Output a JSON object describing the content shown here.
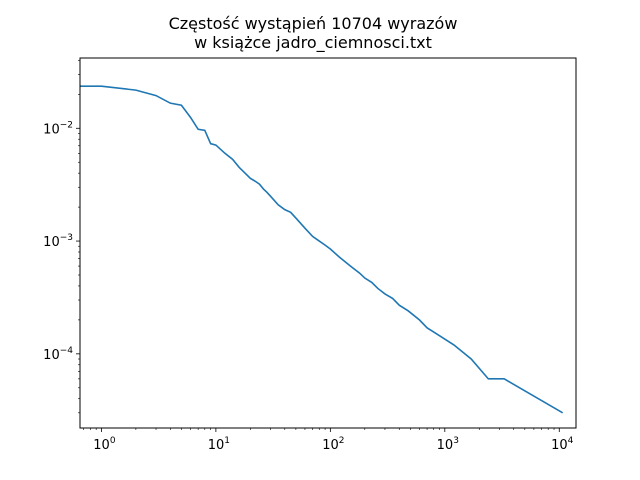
{
  "chart_data": {
    "type": "line",
    "title_lines": [
      "Częstość wystąpień 10704 wyrazów",
      "w książce jadro_ciemnosci.txt"
    ],
    "xscale": "log",
    "yscale": "log",
    "xlim": [
      0.65,
      14000
    ],
    "ylim": [
      2.2e-05,
      0.042
    ],
    "grid": false,
    "line_color": "#1f77b4",
    "x_ticks": [
      {
        "value": 1,
        "base": "10",
        "exp": "0"
      },
      {
        "value": 10,
        "base": "10",
        "exp": "1"
      },
      {
        "value": 100,
        "base": "10",
        "exp": "2"
      },
      {
        "value": 1000,
        "base": "10",
        "exp": "3"
      },
      {
        "value": 10000,
        "base": "10",
        "exp": "4"
      }
    ],
    "y_ticks": [
      {
        "value": 0.0001,
        "base": "10",
        "exp": "−4"
      },
      {
        "value": 0.001,
        "base": "10",
        "exp": "−3"
      },
      {
        "value": 0.01,
        "base": "10",
        "exp": "−2"
      }
    ],
    "series": [
      {
        "x": [
          0.65,
          1,
          2,
          3,
          4,
          5,
          6,
          7,
          8,
          9,
          10,
          12,
          14,
          16,
          18,
          20,
          22,
          24,
          26,
          28,
          30,
          35,
          40,
          45,
          50,
          60,
          70,
          80,
          90,
          100,
          120,
          150,
          180,
          200,
          230,
          260,
          300,
          350,
          400,
          480,
          600,
          700,
          850,
          1200,
          1700,
          2400,
          3300,
          10704
        ],
        "y": [
          0.0236,
          0.0236,
          0.0218,
          0.0195,
          0.0167,
          0.016,
          0.0125,
          0.0098,
          0.0096,
          0.0073,
          0.0071,
          0.006,
          0.0053,
          0.0045,
          0.004,
          0.0036,
          0.0034,
          0.0032,
          0.0029,
          0.0027,
          0.0025,
          0.0021,
          0.0019,
          0.0018,
          0.0016,
          0.0013,
          0.0011,
          0.001,
          0.00092,
          0.00085,
          0.00072,
          0.0006,
          0.00052,
          0.00047,
          0.00043,
          0.00038,
          0.00034,
          0.00031,
          0.00027,
          0.00024,
          0.0002,
          0.00017,
          0.00015,
          0.00012,
          9e-05,
          6e-05,
          6e-05,
          3e-05
        ]
      }
    ]
  }
}
